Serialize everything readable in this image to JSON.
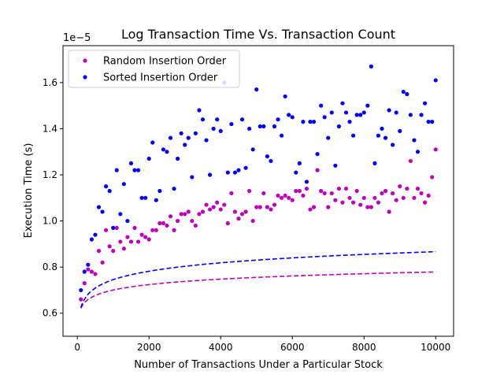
{
  "chart_data": {
    "type": "scatter",
    "title": "Log Transaction Time Vs. Transaction Count",
    "xlabel": "Number of Transactions Under a Particular Stock",
    "ylabel": "Execution Time (s)",
    "y_scale_label": "1e−5",
    "xlim": [
      -400,
      10500
    ],
    "ylim": [
      0.5,
      1.76
    ],
    "y_multiplier": 1e-05,
    "x_ticks": [
      0,
      2000,
      4000,
      6000,
      8000,
      10000
    ],
    "x_tick_labels": [
      "0",
      "2000",
      "4000",
      "6000",
      "8000",
      "10000"
    ],
    "y_ticks": [
      0.6,
      0.8,
      1.0,
      1.2,
      1.4,
      1.6
    ],
    "y_tick_labels": [
      "0.6",
      "0.8",
      "1.0",
      "1.2",
      "1.4",
      "1.6"
    ],
    "grid": false,
    "legend_position": "top-left",
    "series": [
      {
        "name": "Random Insertion Order",
        "color": "#bf00bf",
        "points": [
          [
            100,
            0.66
          ],
          [
            200,
            0.73
          ],
          [
            300,
            0.79
          ],
          [
            400,
            0.78
          ],
          [
            500,
            0.77
          ],
          [
            600,
            0.87
          ],
          [
            700,
            0.82
          ],
          [
            800,
            0.96
          ],
          [
            900,
            0.89
          ],
          [
            1000,
            0.87
          ],
          [
            1100,
            0.97
          ],
          [
            1200,
            0.91
          ],
          [
            1300,
            0.88
          ],
          [
            1400,
            0.93
          ],
          [
            1500,
            0.91
          ],
          [
            1600,
            0.97
          ],
          [
            1700,
            0.91
          ],
          [
            1800,
            0.94
          ],
          [
            1900,
            0.93
          ],
          [
            2000,
            0.92
          ],
          [
            2100,
            0.96
          ],
          [
            2200,
            0.96
          ],
          [
            2300,
            0.99
          ],
          [
            2400,
            0.99
          ],
          [
            2500,
            0.98
          ],
          [
            2600,
            1.02
          ],
          [
            2700,
            0.96
          ],
          [
            2800,
            1.0
          ],
          [
            2900,
            1.03
          ],
          [
            3000,
            1.03
          ],
          [
            3100,
            1.04
          ],
          [
            3200,
            1.0
          ],
          [
            3300,
            0.98
          ],
          [
            3400,
            1.03
          ],
          [
            3500,
            1.04
          ],
          [
            3600,
            1.07
          ],
          [
            3700,
            1.05
          ],
          [
            3800,
            1.06
          ],
          [
            3900,
            1.08
          ],
          [
            4000,
            1.05
          ],
          [
            4100,
            1.07
          ],
          [
            4200,
            0.99
          ],
          [
            4300,
            1.12
          ],
          [
            4400,
            1.04
          ],
          [
            4500,
            1.01
          ],
          [
            4600,
            1.03
          ],
          [
            4700,
            1.04
          ],
          [
            4800,
            1.13
          ],
          [
            4900,
            1.0
          ],
          [
            5000,
            1.06
          ],
          [
            5100,
            1.06
          ],
          [
            5200,
            1.12
          ],
          [
            5300,
            1.06
          ],
          [
            5400,
            1.05
          ],
          [
            5500,
            1.07
          ],
          [
            5600,
            1.11
          ],
          [
            5700,
            1.1
          ],
          [
            5800,
            1.11
          ],
          [
            5900,
            1.1
          ],
          [
            6000,
            1.09
          ],
          [
            6100,
            1.13
          ],
          [
            6200,
            1.13
          ],
          [
            6300,
            1.11
          ],
          [
            6400,
            1.14
          ],
          [
            6500,
            1.05
          ],
          [
            6600,
            1.06
          ],
          [
            6700,
            1.22
          ],
          [
            6800,
            1.13
          ],
          [
            6900,
            1.12
          ],
          [
            7000,
            1.06
          ],
          [
            7100,
            1.12
          ],
          [
            7200,
            1.09
          ],
          [
            7300,
            1.14
          ],
          [
            7400,
            1.08
          ],
          [
            7500,
            1.14
          ],
          [
            7600,
            1.1
          ],
          [
            7700,
            1.08
          ],
          [
            7800,
            1.13
          ],
          [
            7900,
            1.07
          ],
          [
            8000,
            1.1
          ],
          [
            8100,
            1.06
          ],
          [
            8200,
            1.06
          ],
          [
            8300,
            1.1
          ],
          [
            8400,
            1.08
          ],
          [
            8500,
            1.12
          ],
          [
            8600,
            1.13
          ],
          [
            8700,
            1.04
          ],
          [
            8800,
            1.12
          ],
          [
            8900,
            1.09
          ],
          [
            9000,
            1.15
          ],
          [
            9100,
            1.1
          ],
          [
            9200,
            1.14
          ],
          [
            9300,
            1.26
          ],
          [
            9400,
            1.1
          ],
          [
            9500,
            1.14
          ],
          [
            9600,
            1.12
          ],
          [
            9700,
            1.08
          ],
          [
            9800,
            1.11
          ],
          [
            9900,
            1.19
          ],
          [
            10000,
            1.31
          ]
        ],
        "trend": {
          "a": 0.4645,
          "b": 0.0786
        }
      },
      {
        "name": "Sorted Insertion Order",
        "color": "#0000ff",
        "points": [
          [
            100,
            0.7
          ],
          [
            200,
            0.78
          ],
          [
            300,
            0.81
          ],
          [
            400,
            0.92
          ],
          [
            500,
            0.94
          ],
          [
            600,
            1.06
          ],
          [
            700,
            1.04
          ],
          [
            800,
            1.15
          ],
          [
            900,
            1.13
          ],
          [
            1000,
            0.97
          ],
          [
            1100,
            1.22
          ],
          [
            1200,
            1.03
          ],
          [
            1300,
            1.16
          ],
          [
            1400,
            1.0
          ],
          [
            1500,
            1.25
          ],
          [
            1600,
            1.22
          ],
          [
            1700,
            1.22
          ],
          [
            1800,
            1.1
          ],
          [
            1900,
            1.1
          ],
          [
            2000,
            1.27
          ],
          [
            2100,
            1.34
          ],
          [
            2200,
            1.09
          ],
          [
            2300,
            1.13
          ],
          [
            2400,
            1.31
          ],
          [
            2500,
            1.3
          ],
          [
            2600,
            1.36
          ],
          [
            2700,
            1.14
          ],
          [
            2800,
            1.27
          ],
          [
            2900,
            1.38
          ],
          [
            3000,
            1.33
          ],
          [
            3100,
            1.36
          ],
          [
            3200,
            1.19
          ],
          [
            3300,
            1.38
          ],
          [
            3400,
            1.48
          ],
          [
            3500,
            1.44
          ],
          [
            3600,
            1.35
          ],
          [
            3700,
            1.2
          ],
          [
            3800,
            1.4
          ],
          [
            3900,
            1.44
          ],
          [
            4000,
            1.39
          ],
          [
            4100,
            1.6
          ],
          [
            4200,
            1.21
          ],
          [
            4300,
            1.42
          ],
          [
            4400,
            1.21
          ],
          [
            4500,
            1.22
          ],
          [
            4600,
            1.44
          ],
          [
            4700,
            1.23
          ],
          [
            4800,
            1.4
          ],
          [
            4900,
            1.31
          ],
          [
            5000,
            1.57
          ],
          [
            5100,
            1.41
          ],
          [
            5200,
            1.41
          ],
          [
            5300,
            1.28
          ],
          [
            5400,
            1.26
          ],
          [
            5500,
            1.41
          ],
          [
            5600,
            1.44
          ],
          [
            5700,
            1.37
          ],
          [
            5800,
            1.54
          ],
          [
            5900,
            1.46
          ],
          [
            6000,
            1.45
          ],
          [
            6100,
            1.21
          ],
          [
            6200,
            1.25
          ],
          [
            6300,
            1.43
          ],
          [
            6400,
            1.17
          ],
          [
            6500,
            1.43
          ],
          [
            6600,
            1.43
          ],
          [
            6700,
            1.29
          ],
          [
            6800,
            1.5
          ],
          [
            6900,
            1.45
          ],
          [
            7000,
            1.36
          ],
          [
            7100,
            1.47
          ],
          [
            7200,
            1.24
          ],
          [
            7300,
            1.41
          ],
          [
            7400,
            1.51
          ],
          [
            7500,
            1.47
          ],
          [
            7600,
            1.43
          ],
          [
            7700,
            1.37
          ],
          [
            7800,
            1.46
          ],
          [
            7900,
            1.46
          ],
          [
            8000,
            1.47
          ],
          [
            8100,
            1.5
          ],
          [
            8200,
            1.67
          ],
          [
            8300,
            1.25
          ],
          [
            8400,
            1.37
          ],
          [
            8500,
            1.4
          ],
          [
            8600,
            1.36
          ],
          [
            8700,
            1.48
          ],
          [
            8800,
            1.33
          ],
          [
            8900,
            1.47
          ],
          [
            9000,
            1.39
          ],
          [
            9100,
            1.56
          ],
          [
            9200,
            1.55
          ],
          [
            9300,
            1.46
          ],
          [
            9400,
            1.35
          ],
          [
            9500,
            1.3
          ],
          [
            9600,
            1.46
          ],
          [
            9700,
            1.51
          ],
          [
            9800,
            1.43
          ],
          [
            9900,
            1.43
          ],
          [
            10000,
            1.61
          ]
        ],
        "trend": {
          "a": 0.3815,
          "b": 0.1213
        }
      }
    ]
  }
}
